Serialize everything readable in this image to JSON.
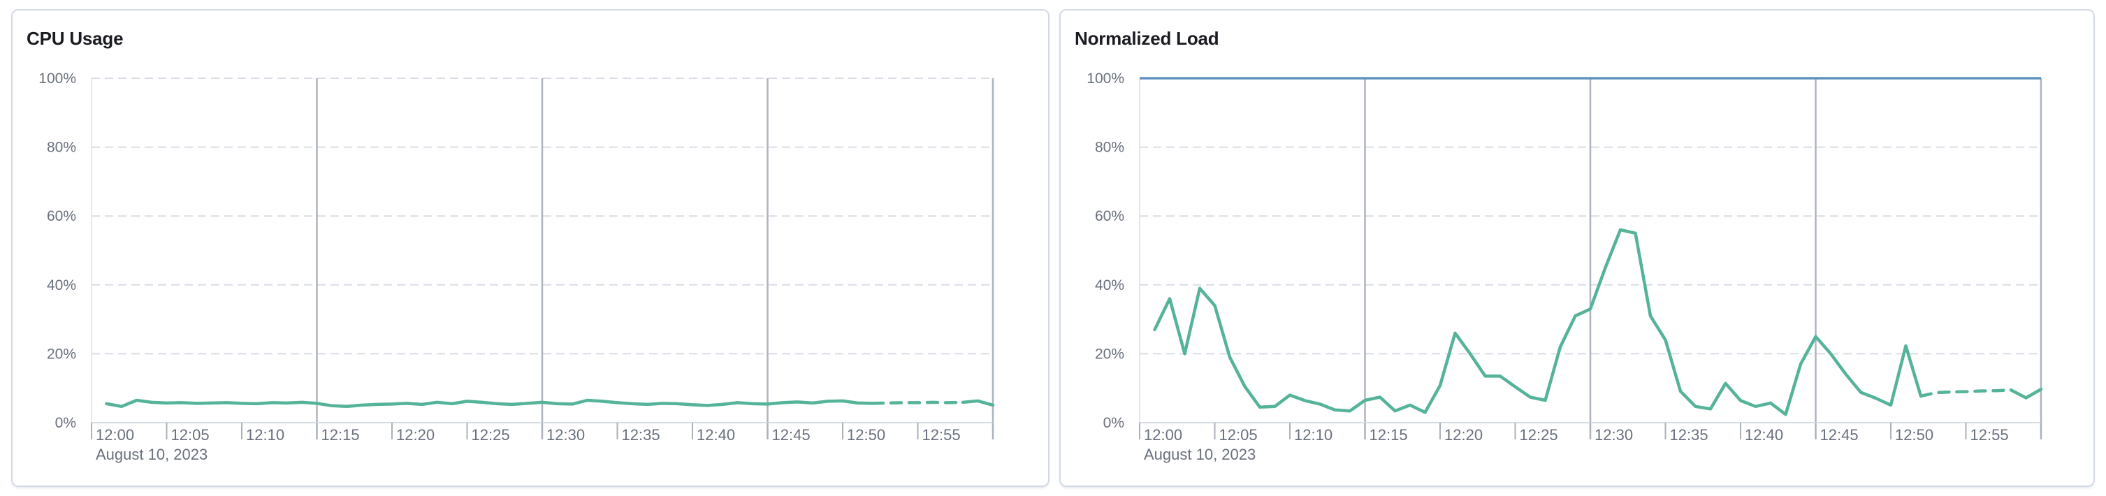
{
  "page": {
    "background": "#ffffff"
  },
  "theme": {
    "panel_background": "#ffffff",
    "panel_border_color": "#d3dae6",
    "title_color": "#1a1c21",
    "axis_label_color": "#69707d",
    "gridline_dashed_color": "#d9dde6",
    "gridline_solid_color": "#aeb4bd",
    "axis_line_color": "#d6dae2",
    "tick_color": "#aab1ba",
    "plot_left_edge_color": "#e4e8ee",
    "series_green": "#54b399",
    "threshold_blue": "#6092c0"
  },
  "chart_data": [
    {
      "type": "line",
      "title": "CPU Usage",
      "unit": "%",
      "ylim": [
        0,
        100
      ],
      "y_tick_values": [
        0,
        20,
        40,
        60,
        80,
        100
      ],
      "y_tick_labels": [
        "0%",
        "20%",
        "40%",
        "60%",
        "80%",
        "100%"
      ],
      "x_range_minutes": [
        0,
        60
      ],
      "x_tick_minutes": [
        0,
        5,
        10,
        15,
        20,
        25,
        30,
        35,
        40,
        45,
        50,
        55
      ],
      "x_tick_labels": [
        "12:00",
        "12:05",
        "12:10",
        "12:15",
        "12:20",
        "12:25",
        "12:30",
        "12:35",
        "12:40",
        "12:45",
        "12:50",
        "12:55"
      ],
      "x_date_label": "August 10, 2023",
      "vertical_gridline_minutes": [
        15,
        30,
        45,
        60
      ],
      "grid": {
        "horizontal": "dashed",
        "vertical": "solid"
      },
      "legend_position": "none",
      "threshold": null,
      "series": [
        {
          "name": "CPU Usage",
          "color": "#54b399",
          "start_minute": 1,
          "step_minutes": 1,
          "values_pct": [
            5.5,
            4.7,
            6.5,
            5.9,
            5.7,
            5.8,
            5.6,
            5.7,
            5.8,
            5.6,
            5.5,
            5.8,
            5.7,
            5.9,
            5.6,
            4.9,
            4.7,
            5.1,
            5.3,
            5.4,
            5.6,
            5.3,
            5.9,
            5.5,
            6.2,
            5.9,
            5.5,
            5.3,
            5.6,
            5.9,
            5.5,
            5.4,
            6.5,
            6.2,
            5.8,
            5.5,
            5.3,
            5.6,
            5.5,
            5.2,
            5.0,
            5.3,
            5.8,
            5.5,
            5.4,
            5.8,
            6.0,
            5.7,
            6.2,
            6.3,
            5.7,
            5.6,
            5.7,
            5.8,
            5.8,
            5.9,
            5.8,
            5.9,
            6.3,
            5.1
          ],
          "dashed_from_minute": 52,
          "dashed_to_minute": 58
        }
      ]
    },
    {
      "type": "line",
      "title": "Normalized Load",
      "unit": "%",
      "ylim": [
        0,
        100
      ],
      "y_tick_values": [
        0,
        20,
        40,
        60,
        80,
        100
      ],
      "y_tick_labels": [
        "0%",
        "20%",
        "40%",
        "60%",
        "80%",
        "100%"
      ],
      "x_range_minutes": [
        0,
        60
      ],
      "x_tick_minutes": [
        0,
        5,
        10,
        15,
        20,
        25,
        30,
        35,
        40,
        45,
        50,
        55
      ],
      "x_tick_labels": [
        "12:00",
        "12:05",
        "12:10",
        "12:15",
        "12:20",
        "12:25",
        "12:30",
        "12:35",
        "12:40",
        "12:45",
        "12:50",
        "12:55"
      ],
      "x_date_label": "August 10, 2023",
      "vertical_gridline_minutes": [
        15,
        30,
        45,
        60
      ],
      "grid": {
        "horizontal": "dashed",
        "vertical": "solid"
      },
      "legend_position": "none",
      "threshold": {
        "value_pct": 100,
        "color": "#6092c0"
      },
      "series": [
        {
          "name": "Normalized Load",
          "color": "#54b399",
          "start_minute": 1,
          "step_minutes": 1,
          "values_pct": [
            27,
            36,
            20,
            39,
            34,
            19,
            10.5,
            4.5,
            4.7,
            8,
            6.4,
            5.4,
            3.7,
            3.4,
            6.5,
            7.4,
            3.4,
            5.1,
            3.0,
            10.8,
            26,
            20,
            13.5,
            13.5,
            10.4,
            7.4,
            6.5,
            22,
            31,
            33,
            45,
            56,
            55,
            31,
            24,
            9.1,
            4.7,
            4.0,
            11.4,
            6.4,
            4.7,
            5.7,
            2.4,
            17,
            25,
            20,
            14.1,
            8.8,
            7.1,
            5.1,
            22.3,
            7.7,
            8.7,
            8.9,
            9.0,
            9.2,
            9.3,
            9.5,
            7.2,
            9.7
          ],
          "dashed_from_minute": 52,
          "dashed_to_minute": 58
        }
      ]
    }
  ]
}
